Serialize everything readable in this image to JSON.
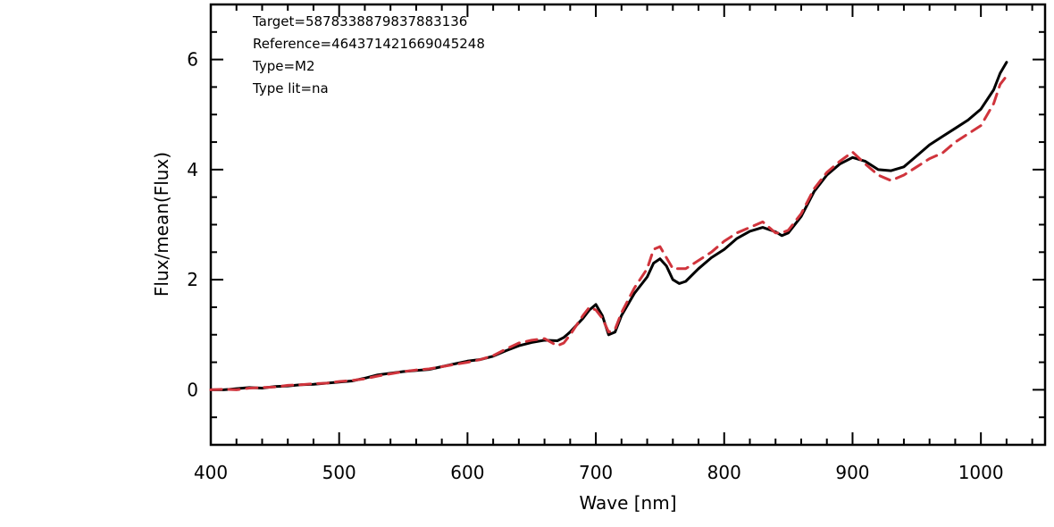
{
  "chart_data": {
    "type": "line",
    "xlabel": "Wave [nm]",
    "ylabel": "Flux/mean(Flux)",
    "xlim": [
      400,
      1050
    ],
    "ylim": [
      -1,
      7
    ],
    "x_ticks": [
      400,
      500,
      600,
      700,
      800,
      900,
      1000
    ],
    "y_ticks": [
      0,
      2,
      4,
      6
    ],
    "annotations": [
      "Target=587833887983788313​6",
      "Reference=464371421669045248",
      "Type=M2",
      "Type lit=na"
    ],
    "series": [
      {
        "color": "#000000",
        "style": "solid",
        "x": [
          400,
          410,
          420,
          430,
          440,
          450,
          460,
          470,
          480,
          490,
          500,
          510,
          520,
          530,
          540,
          550,
          560,
          570,
          580,
          590,
          600,
          610,
          620,
          630,
          640,
          650,
          660,
          670,
          675,
          680,
          690,
          695,
          700,
          705,
          710,
          715,
          720,
          730,
          740,
          745,
          750,
          755,
          760,
          765,
          770,
          780,
          790,
          800,
          810,
          820,
          830,
          840,
          845,
          850,
          860,
          870,
          880,
          890,
          900,
          910,
          920,
          930,
          940,
          950,
          960,
          970,
          980,
          990,
          1000,
          1010,
          1015,
          1020
        ],
        "y": [
          0.0,
          0.0,
          0.02,
          0.04,
          0.03,
          0.06,
          0.07,
          0.09,
          0.1,
          0.12,
          0.14,
          0.16,
          0.21,
          0.27,
          0.3,
          0.33,
          0.35,
          0.37,
          0.42,
          0.47,
          0.52,
          0.55,
          0.61,
          0.71,
          0.8,
          0.86,
          0.9,
          0.89,
          0.95,
          1.05,
          1.3,
          1.45,
          1.55,
          1.35,
          1.0,
          1.05,
          1.35,
          1.75,
          2.05,
          2.3,
          2.38,
          2.25,
          2.0,
          1.93,
          1.97,
          2.2,
          2.4,
          2.55,
          2.75,
          2.88,
          2.95,
          2.87,
          2.8,
          2.85,
          3.15,
          3.6,
          3.9,
          4.1,
          4.22,
          4.15,
          4.0,
          3.98,
          4.05,
          4.25,
          4.45,
          4.6,
          4.75,
          4.9,
          5.1,
          5.45,
          5.75,
          5.95
        ]
      },
      {
        "color": "#d0343c",
        "style": "dashed",
        "x": [
          400,
          410,
          420,
          430,
          440,
          450,
          460,
          470,
          480,
          490,
          500,
          510,
          520,
          530,
          540,
          550,
          560,
          570,
          580,
          590,
          600,
          610,
          620,
          630,
          640,
          650,
          660,
          670,
          675,
          680,
          690,
          695,
          700,
          705,
          710,
          715,
          720,
          730,
          740,
          745,
          750,
          755,
          760,
          765,
          770,
          780,
          790,
          800,
          810,
          820,
          830,
          840,
          845,
          850,
          860,
          870,
          880,
          890,
          900,
          910,
          920,
          930,
          940,
          950,
          960,
          970,
          980,
          990,
          1000,
          1010,
          1015,
          1020
        ],
        "y": [
          0.0,
          0.01,
          0.0,
          0.03,
          0.04,
          0.05,
          0.08,
          0.09,
          0.11,
          0.12,
          0.15,
          0.17,
          0.2,
          0.25,
          0.29,
          0.33,
          0.36,
          0.38,
          0.42,
          0.46,
          0.5,
          0.55,
          0.62,
          0.74,
          0.85,
          0.9,
          0.93,
          0.8,
          0.85,
          1.0,
          1.35,
          1.5,
          1.45,
          1.3,
          1.05,
          1.1,
          1.4,
          1.85,
          2.2,
          2.55,
          2.6,
          2.4,
          2.2,
          2.2,
          2.2,
          2.35,
          2.5,
          2.7,
          2.85,
          2.95,
          3.05,
          2.85,
          2.85,
          2.9,
          3.2,
          3.65,
          3.95,
          4.15,
          4.32,
          4.1,
          3.9,
          3.8,
          3.9,
          4.05,
          4.2,
          4.3,
          4.5,
          4.65,
          4.8,
          5.2,
          5.55,
          5.7
        ]
      }
    ]
  }
}
